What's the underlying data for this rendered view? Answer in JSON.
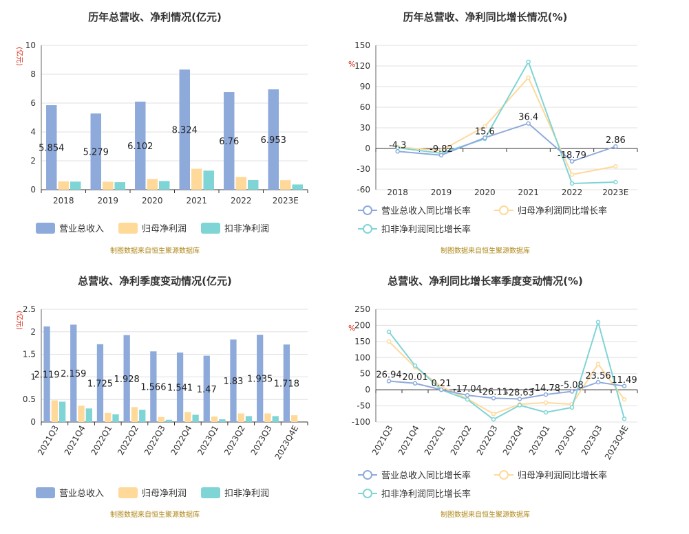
{
  "colors": {
    "revenue": "#8eaadb",
    "net_profit": "#ffd99a",
    "deducted_profit": "#7fd4d6",
    "axis_unit": "#d81e06",
    "source": "#b08a1e",
    "title": "#333333",
    "grid": "#e0e0e0"
  },
  "chart_data": [
    {
      "type": "bar",
      "title": "历年总营收、净利情况(亿元)",
      "ylabel": "(亿元)",
      "categories": [
        "2018",
        "2019",
        "2020",
        "2021",
        "2022",
        "2023E"
      ],
      "ylim": [
        0,
        10
      ],
      "yticks": [
        0,
        2,
        4,
        6,
        8,
        10
      ],
      "series": [
        {
          "name": "营业总收入",
          "values": [
            5.854,
            5.279,
            6.102,
            8.324,
            6.76,
            6.953
          ],
          "labels": [
            "5.854",
            "5.279",
            "6.102",
            "8.324",
            "6.76",
            "6.953"
          ]
        },
        {
          "name": "归母净利润",
          "values": [
            0.58,
            0.55,
            0.74,
            1.45,
            0.88,
            0.66
          ]
        },
        {
          "name": "扣非净利润",
          "values": [
            0.56,
            0.52,
            0.6,
            1.32,
            0.67,
            0.36
          ]
        }
      ],
      "legend": "bottom",
      "grid": true,
      "source": "制图数据来自恒生聚源数据库"
    },
    {
      "type": "line",
      "title": "历年总营收、净利同比增长情况(%)",
      "ylabel": "%",
      "categories": [
        "2018",
        "2019",
        "2020",
        "2021",
        "2022",
        "2023E"
      ],
      "ylim": [
        -60,
        150
      ],
      "yticks": [
        -60,
        -30,
        0,
        30,
        60,
        90,
        120,
        150
      ],
      "series": [
        {
          "name": "营业总收入同比增长率",
          "values": [
            -4.3,
            -9.82,
            15.6,
            36.4,
            -18.79,
            2.86
          ],
          "labels": [
            "-4.3",
            "-9.82",
            "15.6",
            "36.4",
            "-18.79",
            "2.86"
          ]
        },
        {
          "name": "归母净利润同比增长率",
          "values": [
            2,
            -3,
            32,
            103,
            -38,
            -26
          ]
        },
        {
          "name": "扣非净利润同比增长率",
          "values": [
            1,
            -7,
            14,
            126,
            -51,
            -49
          ]
        }
      ],
      "legend": "bottom",
      "grid": true,
      "source": "制图数据来自恒生聚源数据库"
    },
    {
      "type": "bar",
      "title": "总营收、净利季度变动情况(亿元)",
      "ylabel": "(亿元)",
      "categories": [
        "2021Q3",
        "2021Q4",
        "2022Q1",
        "2022Q2",
        "2022Q3",
        "2022Q4",
        "2023Q1",
        "2023Q2",
        "2023Q3",
        "2023Q4E"
      ],
      "ylim": [
        0,
        2.5
      ],
      "yticks": [
        0,
        0.5,
        1,
        1.5,
        2,
        2.5
      ],
      "series": [
        {
          "name": "营业总收入",
          "values": [
            2.119,
            2.159,
            1.725,
            1.928,
            1.566,
            1.541,
            1.47,
            1.83,
            1.935,
            1.718
          ],
          "labels": [
            "2.119",
            "2.159",
            "1.725",
            "1.928",
            "1.566",
            "1.541",
            "1.47",
            "1.83",
            "1.935",
            "1.718"
          ]
        },
        {
          "name": "归母净利润",
          "values": [
            0.48,
            0.36,
            0.2,
            0.33,
            0.11,
            0.22,
            0.12,
            0.19,
            0.19,
            0.15
          ]
        },
        {
          "name": "扣非净利润",
          "values": [
            0.45,
            0.3,
            0.17,
            0.27,
            0.05,
            0.16,
            0.06,
            0.13,
            0.13,
            0.0
          ]
        }
      ],
      "legend": "bottom",
      "grid": true,
      "source": "制图数据来自恒生聚源数据库"
    },
    {
      "type": "line",
      "title": "总营收、净利同比增长率季度变动情况(%)",
      "ylabel": "%",
      "categories": [
        "2021Q3",
        "2021Q4",
        "2022Q1",
        "2022Q2",
        "2022Q3",
        "2022Q4",
        "2023Q1",
        "2023Q2",
        "2023Q3",
        "2023Q4E"
      ],
      "ylim": [
        -100,
        250
      ],
      "yticks": [
        -100,
        -50,
        0,
        50,
        100,
        150,
        200,
        250
      ],
      "series": [
        {
          "name": "营业总收入同比增长率",
          "values": [
            26.94,
            20.01,
            0.21,
            -17.04,
            -26.11,
            -28.63,
            -14.78,
            -5.08,
            23.56,
            11.49
          ],
          "labels": [
            "26.94",
            "20.01",
            "0.21",
            "-17.04",
            "-26.11",
            "-28.63",
            "-14.78",
            "-5.08",
            "23.56",
            "11.49"
          ]
        },
        {
          "name": "归母净利润同比增长率",
          "values": [
            150,
            70,
            10,
            -28,
            -75,
            -45,
            -40,
            -45,
            80,
            -30
          ]
        },
        {
          "name": "扣非净利润同比增长率",
          "values": [
            180,
            75,
            0,
            -30,
            -92,
            -48,
            -70,
            -55,
            210,
            -90
          ]
        }
      ],
      "legend": "bottom",
      "grid": true,
      "source": "制图数据来自恒生聚源数据库"
    }
  ]
}
